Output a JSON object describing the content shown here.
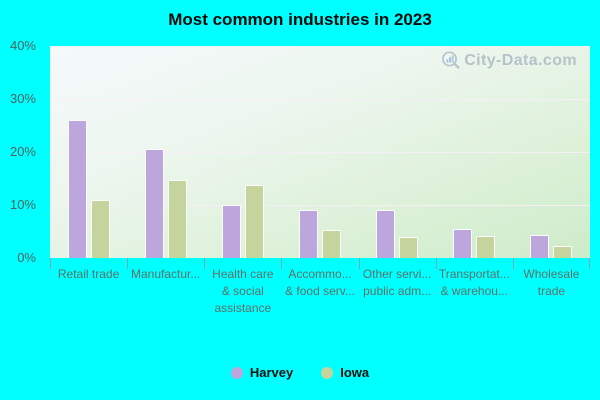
{
  "title": "Most common industries in 2023",
  "watermark": {
    "text": "City-Data.com",
    "icon": "magnifier-barchart-icon"
  },
  "colors": {
    "page_background": "#00ffff",
    "harvey_bar": "#bca6dc",
    "iowa_bar": "#c4d49c",
    "bar_border": "#ffffff",
    "axis_text": "#4e6260",
    "category_text": "#5d7169",
    "watermark_text": "#b2bcc6"
  },
  "y_axis": {
    "tick_labels": [
      "40%",
      "30%",
      "20%",
      "10%",
      "0%"
    ]
  },
  "categories_display": [
    [
      "Retail trade"
    ],
    [
      "Manufactur..."
    ],
    [
      "Health care",
      "& social",
      "assistance"
    ],
    [
      "Accommo...",
      "& food serv..."
    ],
    [
      "Other servi...",
      "public adm..."
    ],
    [
      "Transportat...",
      "& warehou..."
    ],
    [
      "Wholesale",
      "trade"
    ]
  ],
  "legend": {
    "items": [
      {
        "label": "Harvey",
        "color": "#bca6dc"
      },
      {
        "label": "Iowa",
        "color": "#c4d49c"
      }
    ]
  },
  "chart_data": {
    "type": "bar",
    "title": "Most common industries in 2023",
    "categories": [
      "Retail trade",
      "Manufactur...",
      "Health care & social assistance",
      "Accommo... & food serv...",
      "Other servi... public adm...",
      "Transportat... & warehou...",
      "Wholesale trade"
    ],
    "series": [
      {
        "name": "Harvey",
        "color": "#bca6dc",
        "values": [
          26,
          20.5,
          10,
          9,
          9,
          5.5,
          4.3
        ]
      },
      {
        "name": "Iowa",
        "color": "#c4d49c",
        "values": [
          11,
          14.8,
          13.7,
          5.2,
          4,
          4.2,
          2.2
        ]
      }
    ],
    "ylabel": "",
    "xlabel": "",
    "ylim": [
      0,
      40
    ],
    "y_ticks": [
      0,
      10,
      20,
      30,
      40
    ],
    "y_tick_format": "percent",
    "grid": true,
    "legend_position": "bottom"
  }
}
